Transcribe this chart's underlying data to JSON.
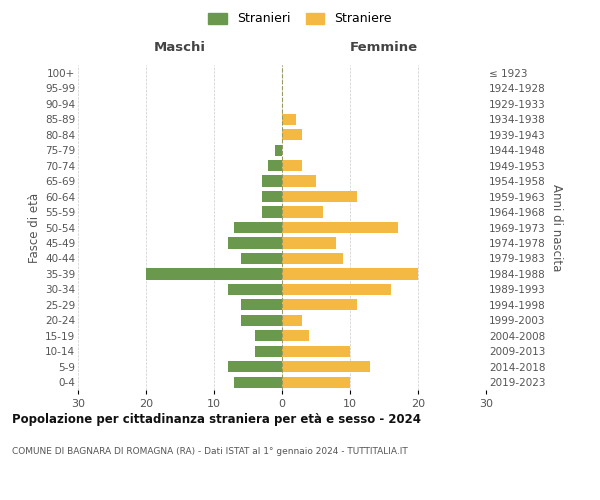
{
  "age_groups": [
    "0-4",
    "5-9",
    "10-14",
    "15-19",
    "20-24",
    "25-29",
    "30-34",
    "35-39",
    "40-44",
    "45-49",
    "50-54",
    "55-59",
    "60-64",
    "65-69",
    "70-74",
    "75-79",
    "80-84",
    "85-89",
    "90-94",
    "95-99",
    "100+"
  ],
  "birth_years": [
    "2019-2023",
    "2014-2018",
    "2009-2013",
    "2004-2008",
    "1999-2003",
    "1994-1998",
    "1989-1993",
    "1984-1988",
    "1979-1983",
    "1974-1978",
    "1969-1973",
    "1964-1968",
    "1959-1963",
    "1954-1958",
    "1949-1953",
    "1944-1948",
    "1939-1943",
    "1934-1938",
    "1929-1933",
    "1924-1928",
    "≤ 1923"
  ],
  "males": [
    7,
    8,
    4,
    4,
    6,
    6,
    8,
    20,
    6,
    8,
    7,
    3,
    3,
    3,
    2,
    1,
    0,
    0,
    0,
    0,
    0
  ],
  "females": [
    10,
    13,
    10,
    4,
    3,
    11,
    16,
    20,
    9,
    8,
    17,
    6,
    11,
    5,
    3,
    0,
    3,
    2,
    0,
    0,
    0
  ],
  "male_color": "#6a994e",
  "female_color": "#f4b942",
  "title": "Popolazione per cittadinanza straniera per età e sesso - 2024",
  "subtitle": "COMUNE DI BAGNARA DI ROMAGNA (RA) - Dati ISTAT al 1° gennaio 2024 - TUTTITALIA.IT",
  "left_label": "Maschi",
  "right_label": "Femmine",
  "ylabel_left": "Fasce di età",
  "ylabel_right": "Anni di nascita",
  "legend_male": "Stranieri",
  "legend_female": "Straniere",
  "xlim": 30,
  "background_color": "#ffffff",
  "grid_color": "#cccccc"
}
